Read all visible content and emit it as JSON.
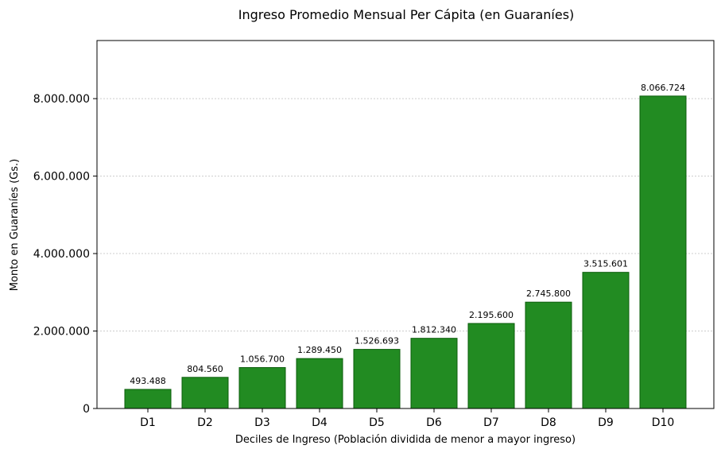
{
  "chart_data": {
    "type": "bar",
    "title": "Ingreso Promedio Mensual Per Cápita (en Guaraníes)",
    "xlabel": "Deciles de Ingreso (Población dividida de menor a mayor ingreso)",
    "ylabel": "Monto en Guaraníes (Gs.)",
    "categories": [
      "D1",
      "D2",
      "D3",
      "D4",
      "D5",
      "D6",
      "D7",
      "D8",
      "D9",
      "D10"
    ],
    "values": [
      493488,
      804560,
      1056700,
      1289450,
      1526693,
      1812340,
      2195600,
      2745800,
      3515601,
      8066724
    ],
    "value_labels": [
      "493.488",
      "804.560",
      "1.056.700",
      "1.289.450",
      "1.526.693",
      "1.812.340",
      "2.195.600",
      "2.745.800",
      "3.515.601",
      "8.066.724"
    ],
    "yticks": [
      0,
      2000000,
      4000000,
      6000000,
      8000000
    ],
    "ytick_labels": [
      "0",
      "2.000.000",
      "4.000.000",
      "6.000.000",
      "8.000.000"
    ],
    "ylim": [
      0,
      9500000
    ],
    "grid": "horizontal-dotted",
    "bar_color": "#228b22",
    "bar_edge_color": "#0b5d0b"
  }
}
